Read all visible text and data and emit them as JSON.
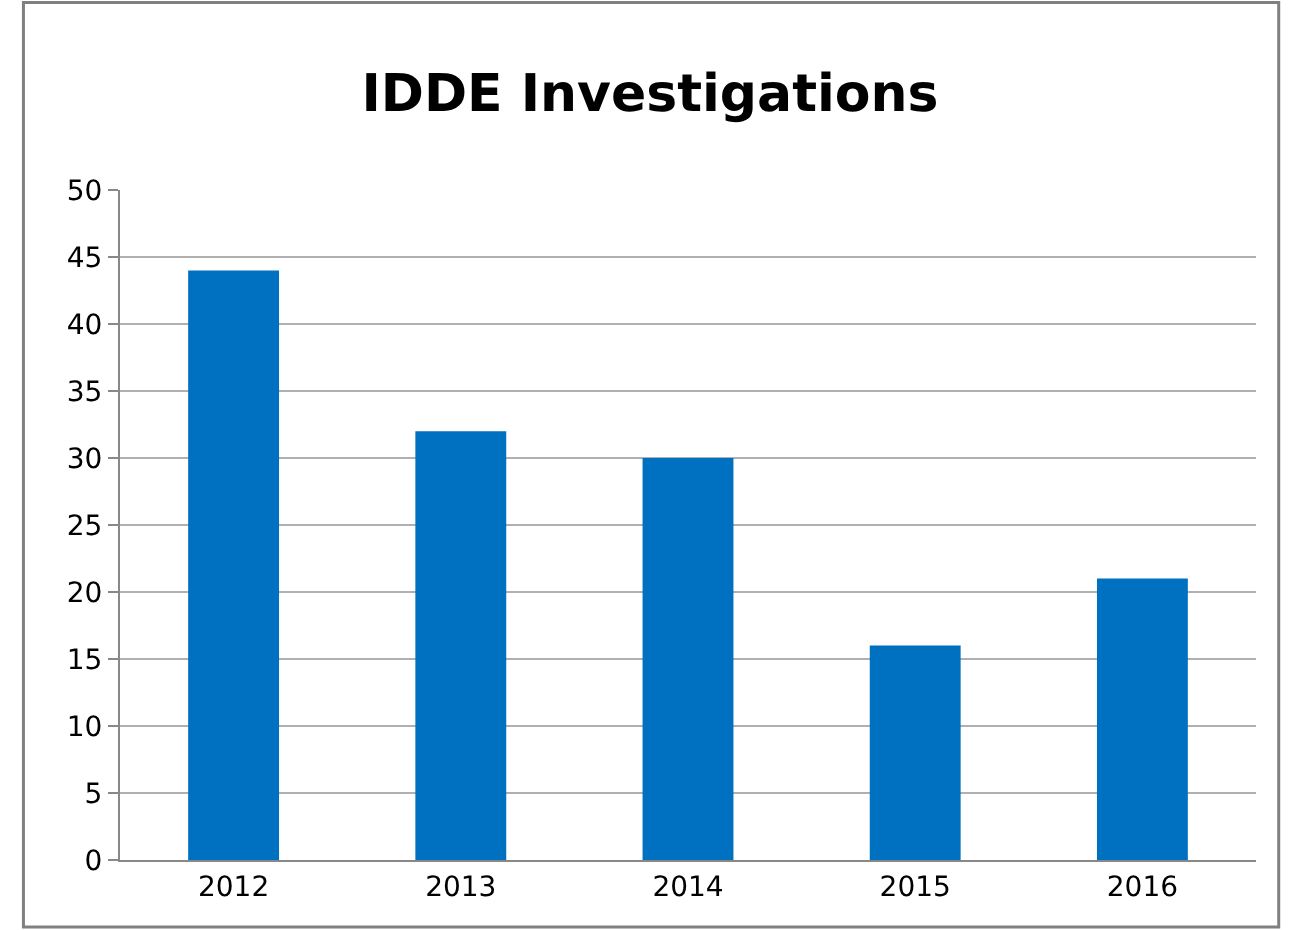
{
  "chart_data": {
    "type": "bar",
    "title": "IDDE Investigations",
    "categories": [
      "2012",
      "2013",
      "2014",
      "2015",
      "2016"
    ],
    "values": [
      44,
      32,
      30,
      16,
      21
    ],
    "color": "#0070c0",
    "ylim": [
      0,
      50
    ],
    "yticks": [
      0,
      5,
      10,
      15,
      20,
      25,
      30,
      35,
      40,
      45,
      50
    ],
    "grid": "y"
  }
}
